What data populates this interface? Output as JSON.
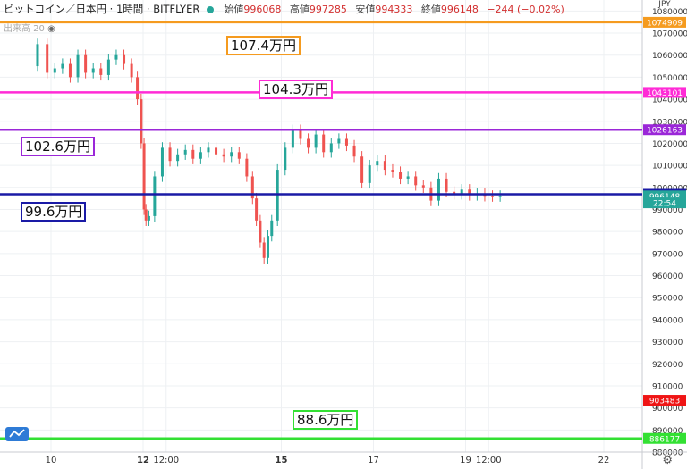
{
  "header": {
    "symbol": "ビットコイン／日本円 · 1時間 · BITFLYER",
    "open_label": "始値",
    "open": "996068",
    "high_label": "高値",
    "high": "997285",
    "low_label": "安値",
    "low": "994333",
    "close_label": "終値",
    "close": "996148",
    "change": "−244 (−0.02%)"
  },
  "volume_label": "出来高 20",
  "axis_unit": "JPY",
  "annotations": [
    {
      "text": "107.4万円",
      "price": 1074909,
      "color": "#f59b1f"
    },
    {
      "text": "104.3万円",
      "price": 1043101,
      "color": "#ff2bd6"
    },
    {
      "text": "102.6万円",
      "price": 1026163,
      "color": "#9b27d8"
    },
    {
      "text": "99.6万円",
      "price": 996882,
      "color": "#1a1aa6"
    },
    {
      "text": "88.6万円",
      "price": 886177,
      "color": "#33e033"
    }
  ],
  "chart_data": {
    "type": "line",
    "title": "",
    "xlabel": "",
    "ylabel": "JPY",
    "ylim": [
      880000,
      1085000
    ],
    "yticks": [
      1080000,
      1070000,
      1060000,
      1050000,
      1040000,
      1030000,
      1020000,
      1010000,
      1000000,
      990000,
      980000,
      970000,
      960000,
      950000,
      940000,
      930000,
      920000,
      910000,
      900000,
      890000,
      880000
    ],
    "xticks": [
      "10",
      "12",
      "12:00",
      "15",
      "17",
      "19",
      "12:00",
      "22"
    ],
    "xtick_hours": [
      0,
      48,
      60,
      120,
      168,
      216,
      228,
      288
    ],
    "grid": true,
    "horizontal_lines": [
      {
        "value": 1074909,
        "label": "1074909",
        "color": "#f59b1f"
      },
      {
        "value": 1043101,
        "label": "1043101",
        "color": "#ff2bd6"
      },
      {
        "value": 1026163,
        "label": "1026163",
        "color": "#9b27d8"
      },
      {
        "value": 996882,
        "label": "996882",
        "color": "#1a1aa6"
      },
      {
        "value": 886177,
        "label": "886177",
        "color": "#33e033"
      }
    ],
    "price_tags": [
      {
        "value": 996148,
        "label": "996148",
        "color": "#26a69a"
      },
      {
        "label": "22:54",
        "value": 993000,
        "color": "#26a69a"
      },
      {
        "value": 903483,
        "label": "903483",
        "color": "#ef1515"
      }
    ],
    "series": [
      {
        "x": [
          -10,
          -4,
          0,
          4,
          8,
          12,
          16,
          20,
          24,
          28,
          32,
          36,
          40,
          44,
          46,
          48,
          49,
          50,
          52,
          56,
          60,
          64,
          68,
          72,
          76,
          80,
          84,
          88,
          92,
          96,
          100,
          104,
          106,
          108,
          110,
          112,
          114,
          116,
          120,
          124,
          128,
          132,
          136,
          140,
          144,
          148,
          152,
          156,
          160,
          164,
          168,
          172,
          176,
          180,
          184,
          188,
          192,
          196,
          200,
          204,
          208,
          212,
          216,
          220,
          224,
          228,
          232,
          236
        ],
        "y": [
          1055000,
          1065000,
          1052000,
          1054000,
          1056000,
          1050000,
          1060000,
          1052000,
          1054000,
          1051000,
          1058000,
          1060000,
          1056000,
          1050000,
          1040000,
          1020000,
          990000,
          985000,
          987000,
          1005000,
          1018000,
          1012000,
          1015000,
          1017000,
          1013000,
          1016000,
          1018000,
          1015000,
          1014000,
          1016000,
          1013000,
          1005000,
          995000,
          985000,
          975000,
          968000,
          978000,
          985000,
          1008000,
          1018000,
          1026000,
          1022000,
          1018000,
          1024000,
          1016000,
          1020000,
          1022000,
          1019000,
          1014000,
          1002000,
          1010000,
          1012000,
          1008000,
          1007000,
          1004000,
          1005000,
          1001000,
          1000000,
          994000,
          1004000,
          998000,
          997000,
          999000,
          996500,
          997000,
          996148,
          996000,
          996148
        ]
      }
    ]
  }
}
